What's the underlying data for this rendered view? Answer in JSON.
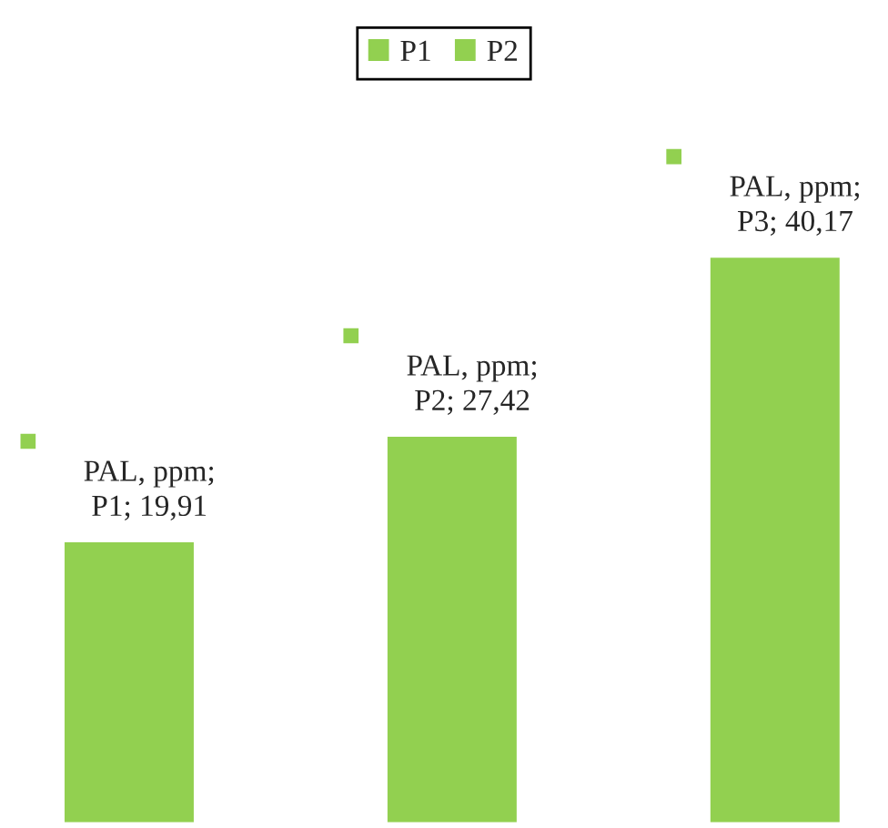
{
  "chart_data": {
    "type": "bar",
    "stacked": true,
    "categories": [
      null,
      null,
      null
    ],
    "series": [
      {
        "name": "P1",
        "color": "#92d050",
        "values": [
          19.91,
          null,
          null
        ],
        "value_labels": [
          "PAL, ppm;\nP1; 19,91",
          null,
          null
        ]
      },
      {
        "name": "P2",
        "color": "#92d050",
        "values": [
          null,
          27.42,
          null
        ],
        "value_labels": [
          null,
          "PAL, ppm;\nP2; 27,42",
          null
        ]
      },
      {
        "color": "#92d050",
        "values": [
          null,
          null,
          40.17
        ],
        "value_labels": [
          null,
          null,
          "PAL, ppm;\nP3; 40,17"
        ]
      }
    ],
    "legend": "top"
  }
}
